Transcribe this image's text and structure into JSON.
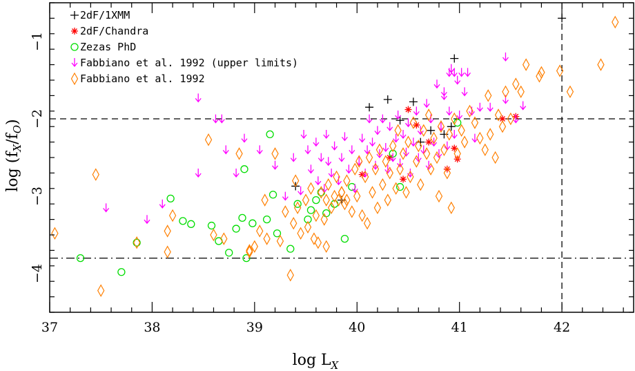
{
  "chart_data": {
    "type": "scatter",
    "xlabel": "log L",
    "xlabel_sub": "X",
    "ylabel_pre": "log (f",
    "ylabel_sub1": "X",
    "ylabel_mid": "/f",
    "ylabel_sub2": "O",
    "ylabel_post": ")",
    "xlim": [
      37.0,
      42.7
    ],
    "ylim": [
      -4.5,
      -0.5
    ],
    "x_ticks": [
      37,
      38,
      39,
      40,
      41,
      42
    ],
    "y_ticks": [
      -1,
      -2,
      -3,
      -4
    ],
    "x_tick_labels": [
      "37",
      "38",
      "39",
      "40",
      "41",
      "42"
    ],
    "y_tick_labels": [
      "−1",
      "−2",
      "−3",
      "−4"
    ],
    "reference_lines": [
      {
        "orientation": "horizontal",
        "value": -2.0,
        "style": "dashed"
      },
      {
        "orientation": "horizontal",
        "value": -3.8,
        "style": "dashdot"
      },
      {
        "orientation": "vertical",
        "value": 42.0,
        "style": "dashed"
      }
    ],
    "series": [
      {
        "name": "2dF/1XMM",
        "marker": "plus",
        "color": "#000000",
        "points": [
          [
            42.0,
            -0.7
          ],
          [
            40.95,
            -1.22
          ],
          [
            40.3,
            -1.75
          ],
          [
            40.12,
            -1.85
          ],
          [
            40.55,
            -1.78
          ],
          [
            39.4,
            -2.87
          ],
          [
            40.42,
            -2.02
          ],
          [
            40.72,
            -2.15
          ],
          [
            40.92,
            -2.1
          ],
          [
            40.85,
            -2.2
          ],
          [
            39.85,
            -3.05
          ],
          [
            40.62,
            -2.3
          ]
        ]
      },
      {
        "name": "2dF/Chandra",
        "marker": "asterisk",
        "color": "#ff0000",
        "points": [
          [
            40.5,
            -1.88
          ],
          [
            40.58,
            -2.08
          ],
          [
            41.42,
            -2.0
          ],
          [
            41.55,
            -1.97
          ],
          [
            40.98,
            -2.52
          ],
          [
            40.95,
            -2.38
          ],
          [
            40.7,
            -2.3
          ],
          [
            40.88,
            -2.65
          ],
          [
            40.45,
            -2.78
          ],
          [
            40.32,
            -2.5
          ],
          [
            40.05,
            -2.72
          ]
        ]
      },
      {
        "name": "Zezas PhD",
        "marker": "circle",
        "color": "#00dd00",
        "points": [
          [
            37.3,
            -3.8
          ],
          [
            37.7,
            -3.98
          ],
          [
            37.85,
            -3.6
          ],
          [
            38.18,
            -3.03
          ],
          [
            38.3,
            -3.32
          ],
          [
            38.38,
            -3.36
          ],
          [
            38.58,
            -3.38
          ],
          [
            38.65,
            -3.58
          ],
          [
            38.75,
            -3.73
          ],
          [
            38.82,
            -3.42
          ],
          [
            38.88,
            -3.28
          ],
          [
            38.92,
            -3.8
          ],
          [
            38.9,
            -2.65
          ],
          [
            38.98,
            -3.35
          ],
          [
            39.12,
            -3.3
          ],
          [
            39.15,
            -2.2
          ],
          [
            39.18,
            -2.98
          ],
          [
            39.22,
            -3.48
          ],
          [
            39.35,
            -3.68
          ],
          [
            39.42,
            -3.1
          ],
          [
            39.52,
            -3.3
          ],
          [
            39.55,
            -3.18
          ],
          [
            39.6,
            -3.05
          ],
          [
            39.65,
            -2.95
          ],
          [
            39.7,
            -3.22
          ],
          [
            39.78,
            -3.1
          ],
          [
            39.88,
            -3.55
          ],
          [
            39.95,
            -2.88
          ],
          [
            40.42,
            -2.88
          ],
          [
            40.35,
            -2.45
          ],
          [
            40.98,
            -2.05
          ]
        ]
      },
      {
        "name": "Fabbiano et al. 1992 (upper limits)",
        "marker": "down-arrow",
        "color": "#ff00ff",
        "points": [
          [
            37.55,
            -3.2
          ],
          [
            37.95,
            -3.35
          ],
          [
            38.1,
            -3.15
          ],
          [
            38.45,
            -1.78
          ],
          [
            38.45,
            -2.75
          ],
          [
            38.62,
            -2.05
          ],
          [
            38.68,
            -2.05
          ],
          [
            38.72,
            -2.45
          ],
          [
            38.82,
            -2.75
          ],
          [
            38.9,
            -2.3
          ],
          [
            39.05,
            -2.45
          ],
          [
            39.2,
            -2.65
          ],
          [
            39.3,
            -3.05
          ],
          [
            39.38,
            -2.55
          ],
          [
            39.45,
            -2.98
          ],
          [
            39.48,
            -2.25
          ],
          [
            39.52,
            -2.45
          ],
          [
            39.55,
            -2.7
          ],
          [
            39.6,
            -2.35
          ],
          [
            39.62,
            -2.85
          ],
          [
            39.65,
            -2.55
          ],
          [
            39.68,
            -2.95
          ],
          [
            39.7,
            -2.25
          ],
          [
            39.72,
            -2.6
          ],
          [
            39.75,
            -2.75
          ],
          [
            39.78,
            -2.4
          ],
          [
            39.82,
            -2.85
          ],
          [
            39.85,
            -2.55
          ],
          [
            39.88,
            -2.28
          ],
          [
            39.92,
            -2.7
          ],
          [
            39.95,
            -2.45
          ],
          [
            39.98,
            -2.95
          ],
          [
            40.02,
            -2.6
          ],
          [
            40.05,
            -2.3
          ],
          [
            40.08,
            -2.75
          ],
          [
            40.1,
            -2.45
          ],
          [
            40.12,
            -2.05
          ],
          [
            40.15,
            -2.35
          ],
          [
            40.18,
            -2.65
          ],
          [
            40.2,
            -2.2
          ],
          [
            40.22,
            -2.5
          ],
          [
            40.25,
            -2.05
          ],
          [
            40.28,
            -2.42
          ],
          [
            40.3,
            -2.7
          ],
          [
            40.32,
            -2.15
          ],
          [
            40.35,
            -2.55
          ],
          [
            40.38,
            -2.3
          ],
          [
            40.4,
            -2.0
          ],
          [
            40.42,
            -2.62
          ],
          [
            40.45,
            -2.25
          ],
          [
            40.48,
            -2.48
          ],
          [
            40.5,
            -2.1
          ],
          [
            40.52,
            -2.75
          ],
          [
            40.55,
            -2.35
          ],
          [
            40.58,
            -1.95
          ],
          [
            40.6,
            -2.55
          ],
          [
            40.62,
            -2.2
          ],
          [
            40.65,
            -2.45
          ],
          [
            40.68,
            -1.85
          ],
          [
            40.7,
            -2.65
          ],
          [
            40.72,
            -2.05
          ],
          [
            40.75,
            -2.35
          ],
          [
            40.78,
            -1.6
          ],
          [
            40.8,
            -2.5
          ],
          [
            40.82,
            -2.15
          ],
          [
            40.85,
            -1.75
          ],
          [
            40.88,
            -2.4
          ],
          [
            40.9,
            -1.95
          ],
          [
            40.92,
            -1.4
          ],
          [
            40.95,
            -2.25
          ],
          [
            40.98,
            -1.55
          ],
          [
            41.0,
            -2.0
          ],
          [
            41.02,
            -1.45
          ],
          [
            41.05,
            -1.7
          ],
          [
            41.08,
            -1.45
          ],
          [
            41.12,
            -1.95
          ],
          [
            41.15,
            -2.3
          ],
          [
            41.2,
            -1.9
          ],
          [
            41.3,
            -1.9
          ],
          [
            41.45,
            -1.8
          ],
          [
            41.45,
            -1.25
          ],
          [
            41.55,
            -2.05
          ],
          [
            41.62,
            -1.88
          ],
          [
            40.9,
            -1.45
          ],
          [
            40.95,
            -1.45
          ],
          [
            40.85,
            -1.7
          ]
        ]
      },
      {
        "name": "Fabbiano et al. 1992",
        "marker": "diamond",
        "color": "#ff7f00",
        "points": [
          [
            37.05,
            -3.48
          ],
          [
            37.45,
            -2.72
          ],
          [
            37.5,
            -4.22
          ],
          [
            37.85,
            -3.6
          ],
          [
            38.15,
            -3.45
          ],
          [
            38.15,
            -3.72
          ],
          [
            38.2,
            -3.25
          ],
          [
            38.55,
            -2.27
          ],
          [
            38.6,
            -3.5
          ],
          [
            38.85,
            -2.45
          ],
          [
            38.95,
            -3.72
          ],
          [
            39.0,
            -3.65
          ],
          [
            39.05,
            -3.45
          ],
          [
            39.1,
            -3.05
          ],
          [
            39.12,
            -3.55
          ],
          [
            39.2,
            -2.45
          ],
          [
            39.25,
            -3.58
          ],
          [
            39.3,
            -3.2
          ],
          [
            39.35,
            -4.02
          ],
          [
            39.38,
            -3.35
          ],
          [
            39.4,
            -2.8
          ],
          [
            39.42,
            -3.15
          ],
          [
            39.45,
            -3.48
          ],
          [
            39.5,
            -3.05
          ],
          [
            39.52,
            -3.4
          ],
          [
            39.55,
            -2.9
          ],
          [
            39.58,
            -3.55
          ],
          [
            39.6,
            -3.25
          ],
          [
            39.62,
            -3.6
          ],
          [
            39.65,
            -2.95
          ],
          [
            39.68,
            -3.3
          ],
          [
            39.7,
            -3.05
          ],
          [
            39.72,
            -2.85
          ],
          [
            39.75,
            -3.15
          ],
          [
            39.78,
            -3.0
          ],
          [
            39.8,
            -2.75
          ],
          [
            39.82,
            -3.05
          ],
          [
            39.85,
            -2.95
          ],
          [
            39.88,
            -3.1
          ],
          [
            39.9,
            -2.8
          ],
          [
            39.95,
            -3.2
          ],
          [
            39.98,
            -2.65
          ],
          [
            40.0,
            -3.0
          ],
          [
            40.02,
            -2.55
          ],
          [
            40.05,
            -3.25
          ],
          [
            40.08,
            -2.75
          ],
          [
            40.1,
            -3.35
          ],
          [
            40.12,
            -2.5
          ],
          [
            40.15,
            -2.95
          ],
          [
            40.18,
            -2.65
          ],
          [
            40.2,
            -3.15
          ],
          [
            40.22,
            -2.4
          ],
          [
            40.25,
            -2.85
          ],
          [
            40.28,
            -2.55
          ],
          [
            40.3,
            -3.05
          ],
          [
            40.32,
            -2.7
          ],
          [
            40.35,
            -2.35
          ],
          [
            40.38,
            -2.9
          ],
          [
            40.4,
            -2.15
          ],
          [
            40.42,
            -2.65
          ],
          [
            40.45,
            -2.45
          ],
          [
            40.48,
            -2.95
          ],
          [
            40.5,
            -2.3
          ],
          [
            40.52,
            -2.75
          ],
          [
            40.55,
            -2.05
          ],
          [
            40.58,
            -2.55
          ],
          [
            40.6,
            -2.35
          ],
          [
            40.62,
            -2.85
          ],
          [
            40.65,
            -2.15
          ],
          [
            40.68,
            -2.45
          ],
          [
            40.7,
            -1.95
          ],
          [
            40.72,
            -2.65
          ],
          [
            40.75,
            -2.25
          ],
          [
            40.78,
            -2.5
          ],
          [
            40.8,
            -3.0
          ],
          [
            40.82,
            -2.1
          ],
          [
            40.85,
            -2.4
          ],
          [
            40.88,
            -2.7
          ],
          [
            40.9,
            -2.2
          ],
          [
            40.92,
            -3.15
          ],
          [
            40.95,
            -2.0
          ],
          [
            40.98,
            -2.45
          ],
          [
            41.02,
            -2.15
          ],
          [
            41.05,
            -2.3
          ],
          [
            41.1,
            -1.9
          ],
          [
            41.15,
            -2.05
          ],
          [
            41.2,
            -2.25
          ],
          [
            41.25,
            -2.4
          ],
          [
            41.28,
            -1.7
          ],
          [
            41.3,
            -2.2
          ],
          [
            41.35,
            -2.5
          ],
          [
            41.38,
            -1.95
          ],
          [
            41.42,
            -2.1
          ],
          [
            41.45,
            -1.65
          ],
          [
            41.5,
            -2.0
          ],
          [
            41.55,
            -1.55
          ],
          [
            41.6,
            -1.65
          ],
          [
            41.65,
            -1.3
          ],
          [
            41.78,
            -1.45
          ],
          [
            41.8,
            -1.4
          ],
          [
            41.98,
            -1.38
          ],
          [
            42.08,
            -1.65
          ],
          [
            42.38,
            -1.3
          ],
          [
            42.52,
            -0.75
          ],
          [
            39.85,
            -2.95
          ],
          [
            39.9,
            -3.05
          ],
          [
            38.95,
            -3.7
          ],
          [
            38.7,
            -3.55
          ],
          [
            39.7,
            -3.65
          ]
        ]
      }
    ]
  }
}
